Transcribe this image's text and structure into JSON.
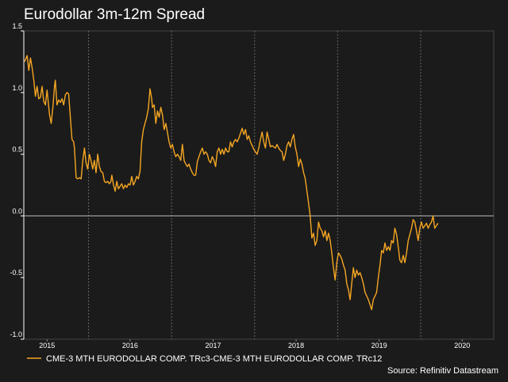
{
  "chart_data": {
    "type": "line",
    "title": "Eurodollar 3m-12m Spread",
    "source": "Source: Refinitiv Datastream",
    "xlabel": "",
    "ylabel": "",
    "ylim": [
      -1.0,
      1.5
    ],
    "xlim": [
      2014.72,
      2020.38
    ],
    "yticks": [
      {
        "value": 1.5,
        "label": "1.5"
      },
      {
        "value": 1.0,
        "label": "1.0"
      },
      {
        "value": 0.5,
        "label": "0.5"
      },
      {
        "value": 0.0,
        "label": "0.0"
      },
      {
        "value": -0.5,
        "label": "-0.5"
      },
      {
        "value": -1.0,
        "label": "-1.0"
      }
    ],
    "xticks": [
      {
        "value": 2015.0,
        "label": "2015"
      },
      {
        "value": 2016.0,
        "label": "2016"
      },
      {
        "value": 2017.0,
        "label": "2017"
      },
      {
        "value": 2018.0,
        "label": "2018"
      },
      {
        "value": 2019.0,
        "label": "2019"
      },
      {
        "value": 2020.0,
        "label": "2020"
      }
    ],
    "grid": "vertical dashed at year boundaries",
    "legend": "bottom-left",
    "colors": {
      "series": "#f5a623",
      "background": "#1b1b1b",
      "axis": "#ffffff",
      "grid": "#666666",
      "zero_line": "#bbbbbb"
    },
    "series": [
      {
        "name": "CME-3 MTH EURODOLLAR COMP. TRc3-CME-3 MTH EURODOLLAR COMP. TRc12",
        "points": [
          [
            2014.73,
            1.25
          ],
          [
            2014.76,
            1.3
          ],
          [
            2014.78,
            1.18
          ],
          [
            2014.8,
            1.28
          ],
          [
            2014.82,
            1.2
          ],
          [
            2014.84,
            1.1
          ],
          [
            2014.86,
            0.97
          ],
          [
            2014.88,
            1.05
          ],
          [
            2014.9,
            0.95
          ],
          [
            2014.92,
            0.96
          ],
          [
            2014.94,
            1.05
          ],
          [
            2014.96,
            0.93
          ],
          [
            2014.98,
            0.9
          ],
          [
            2015.0,
            1.02
          ],
          [
            2015.03,
            0.82
          ],
          [
            2015.05,
            0.75
          ],
          [
            2015.07,
            0.88
          ],
          [
            2015.09,
            1.05
          ],
          [
            2015.1,
            1.1
          ],
          [
            2015.12,
            0.9
          ],
          [
            2015.14,
            0.94
          ],
          [
            2015.16,
            0.92
          ],
          [
            2015.18,
            0.95
          ],
          [
            2015.2,
            0.9
          ],
          [
            2015.22,
            0.98
          ],
          [
            2015.24,
            1.0
          ],
          [
            2015.26,
            0.99
          ],
          [
            2015.28,
            0.8
          ],
          [
            2015.3,
            0.62
          ],
          [
            2015.32,
            0.6
          ],
          [
            2015.33,
            0.55
          ],
          [
            2015.35,
            0.31
          ],
          [
            2015.37,
            0.3
          ],
          [
            2015.39,
            0.31
          ],
          [
            2015.41,
            0.3
          ],
          [
            2015.43,
            0.45
          ],
          [
            2015.45,
            0.55
          ],
          [
            2015.47,
            0.43
          ],
          [
            2015.49,
            0.38
          ],
          [
            2015.51,
            0.5
          ],
          [
            2015.53,
            0.45
          ],
          [
            2015.55,
            0.38
          ],
          [
            2015.57,
            0.45
          ],
          [
            2015.59,
            0.35
          ],
          [
            2015.61,
            0.5
          ],
          [
            2015.63,
            0.4
          ],
          [
            2015.65,
            0.36
          ],
          [
            2015.67,
            0.35
          ],
          [
            2015.69,
            0.28
          ],
          [
            2015.71,
            0.27
          ],
          [
            2015.73,
            0.28
          ],
          [
            2015.75,
            0.26
          ],
          [
            2015.77,
            0.28
          ],
          [
            2015.78,
            0.33
          ],
          [
            2015.8,
            0.25
          ],
          [
            2015.82,
            0.2
          ],
          [
            2015.84,
            0.28
          ],
          [
            2015.86,
            0.22
          ],
          [
            2015.88,
            0.24
          ],
          [
            2015.9,
            0.26
          ],
          [
            2015.92,
            0.22
          ],
          [
            2015.94,
            0.25
          ],
          [
            2015.96,
            0.23
          ],
          [
            2015.98,
            0.26
          ],
          [
            2016.0,
            0.25
          ],
          [
            2016.02,
            0.32
          ],
          [
            2016.04,
            0.25
          ],
          [
            2016.06,
            0.28
          ],
          [
            2016.08,
            0.32
          ],
          [
            2016.1,
            0.3
          ],
          [
            2016.12,
            0.36
          ],
          [
            2016.14,
            0.6
          ],
          [
            2016.16,
            0.7
          ],
          [
            2016.18,
            0.75
          ],
          [
            2016.2,
            0.8
          ],
          [
            2016.22,
            0.87
          ],
          [
            2016.24,
            1.03
          ],
          [
            2016.26,
            0.95
          ],
          [
            2016.27,
            0.88
          ],
          [
            2016.29,
            0.9
          ],
          [
            2016.31,
            0.75
          ],
          [
            2016.33,
            0.85
          ],
          [
            2016.35,
            0.8
          ],
          [
            2016.37,
            0.88
          ],
          [
            2016.39,
            0.82
          ],
          [
            2016.41,
            0.7
          ],
          [
            2016.43,
            0.75
          ],
          [
            2016.45,
            0.68
          ],
          [
            2016.47,
            0.6
          ],
          [
            2016.49,
            0.55
          ],
          [
            2016.51,
            0.58
          ],
          [
            2016.53,
            0.52
          ],
          [
            2016.55,
            0.48
          ],
          [
            2016.57,
            0.5
          ],
          [
            2016.59,
            0.48
          ],
          [
            2016.61,
            0.45
          ],
          [
            2016.63,
            0.58
          ],
          [
            2016.65,
            0.45
          ],
          [
            2016.67,
            0.42
          ],
          [
            2016.69,
            0.4
          ],
          [
            2016.71,
            0.42
          ],
          [
            2016.73,
            0.38
          ],
          [
            2016.75,
            0.35
          ],
          [
            2016.77,
            0.33
          ],
          [
            2016.79,
            0.33
          ],
          [
            2016.81,
            0.44
          ],
          [
            2016.83,
            0.48
          ],
          [
            2016.85,
            0.52
          ],
          [
            2016.87,
            0.55
          ],
          [
            2016.89,
            0.5
          ],
          [
            2016.91,
            0.52
          ],
          [
            2016.93,
            0.5
          ],
          [
            2016.95,
            0.45
          ],
          [
            2016.97,
            0.43
          ],
          [
            2016.99,
            0.48
          ],
          [
            2017.01,
            0.45
          ],
          [
            2017.03,
            0.4
          ],
          [
            2017.05,
            0.52
          ],
          [
            2017.07,
            0.55
          ],
          [
            2017.09,
            0.5
          ],
          [
            2017.11,
            0.54
          ],
          [
            2017.13,
            0.5
          ],
          [
            2017.15,
            0.55
          ],
          [
            2017.17,
            0.52
          ],
          [
            2017.19,
            0.52
          ],
          [
            2017.21,
            0.6
          ],
          [
            2017.23,
            0.56
          ],
          [
            2017.25,
            0.6
          ],
          [
            2017.27,
            0.62
          ],
          [
            2017.29,
            0.6
          ],
          [
            2017.31,
            0.63
          ],
          [
            2017.33,
            0.67
          ],
          [
            2017.35,
            0.71
          ],
          [
            2017.37,
            0.66
          ],
          [
            2017.39,
            0.7
          ],
          [
            2017.41,
            0.62
          ],
          [
            2017.43,
            0.65
          ],
          [
            2017.45,
            0.6
          ],
          [
            2017.47,
            0.57
          ],
          [
            2017.49,
            0.54
          ],
          [
            2017.51,
            0.52
          ],
          [
            2017.53,
            0.5
          ],
          [
            2017.55,
            0.55
          ],
          [
            2017.57,
            0.62
          ],
          [
            2017.59,
            0.68
          ],
          [
            2017.61,
            0.6
          ],
          [
            2017.63,
            0.55
          ],
          [
            2017.65,
            0.68
          ],
          [
            2017.67,
            0.62
          ],
          [
            2017.69,
            0.56
          ],
          [
            2017.71,
            0.57
          ],
          [
            2017.73,
            0.56
          ],
          [
            2017.75,
            0.55
          ],
          [
            2017.77,
            0.58
          ],
          [
            2017.79,
            0.55
          ],
          [
            2017.81,
            0.53
          ],
          [
            2017.83,
            0.52
          ],
          [
            2017.85,
            0.45
          ],
          [
            2017.87,
            0.5
          ],
          [
            2017.89,
            0.57
          ],
          [
            2017.91,
            0.6
          ],
          [
            2017.93,
            0.56
          ],
          [
            2017.95,
            0.62
          ],
          [
            2017.97,
            0.66
          ],
          [
            2017.99,
            0.56
          ],
          [
            2018.01,
            0.5
          ],
          [
            2018.03,
            0.4
          ],
          [
            2018.05,
            0.46
          ],
          [
            2018.07,
            0.42
          ],
          [
            2018.09,
            0.35
          ],
          [
            2018.11,
            0.3
          ],
          [
            2018.13,
            0.2
          ],
          [
            2018.15,
            0.1
          ],
          [
            2018.17,
            0.0
          ],
          [
            2018.19,
            -0.18
          ],
          [
            2018.21,
            -0.14
          ],
          [
            2018.23,
            -0.24
          ],
          [
            2018.25,
            -0.2
          ],
          [
            2018.27,
            -0.05
          ],
          [
            2018.29,
            -0.1
          ],
          [
            2018.31,
            -0.12
          ],
          [
            2018.33,
            -0.17
          ],
          [
            2018.35,
            -0.12
          ],
          [
            2018.37,
            -0.2
          ],
          [
            2018.39,
            -0.14
          ],
          [
            2018.41,
            -0.2
          ],
          [
            2018.43,
            -0.3
          ],
          [
            2018.45,
            -0.42
          ],
          [
            2018.47,
            -0.52
          ],
          [
            2018.49,
            -0.38
          ],
          [
            2018.51,
            -0.3
          ],
          [
            2018.53,
            -0.32
          ],
          [
            2018.55,
            -0.35
          ],
          [
            2018.57,
            -0.4
          ],
          [
            2018.59,
            -0.44
          ],
          [
            2018.61,
            -0.55
          ],
          [
            2018.63,
            -0.6
          ],
          [
            2018.65,
            -0.68
          ],
          [
            2018.67,
            -0.55
          ],
          [
            2018.69,
            -0.42
          ],
          [
            2018.71,
            -0.5
          ],
          [
            2018.73,
            -0.44
          ],
          [
            2018.75,
            -0.48
          ],
          [
            2018.77,
            -0.46
          ],
          [
            2018.79,
            -0.5
          ],
          [
            2018.81,
            -0.55
          ],
          [
            2018.83,
            -0.62
          ],
          [
            2018.85,
            -0.65
          ],
          [
            2018.87,
            -0.68
          ],
          [
            2018.89,
            -0.72
          ],
          [
            2018.91,
            -0.76
          ],
          [
            2018.93,
            -0.68
          ],
          [
            2018.95,
            -0.65
          ],
          [
            2018.97,
            -0.62
          ],
          [
            2018.99,
            -0.5
          ],
          [
            2019.01,
            -0.4
          ],
          [
            2019.03,
            -0.28
          ],
          [
            2019.05,
            -0.3
          ],
          [
            2019.07,
            -0.22
          ],
          [
            2019.09,
            -0.28
          ],
          [
            2019.11,
            -0.25
          ],
          [
            2019.13,
            -0.28
          ],
          [
            2019.15,
            -0.2
          ],
          [
            2019.17,
            -0.22
          ],
          [
            2019.19,
            -0.1
          ],
          [
            2019.21,
            -0.15
          ],
          [
            2019.23,
            -0.25
          ],
          [
            2019.25,
            -0.36
          ],
          [
            2019.27,
            -0.38
          ],
          [
            2019.29,
            -0.32
          ],
          [
            2019.31,
            -0.38
          ],
          [
            2019.33,
            -0.3
          ],
          [
            2019.35,
            -0.2
          ],
          [
            2019.37,
            -0.15
          ],
          [
            2019.39,
            -0.1
          ],
          [
            2019.41,
            -0.03
          ],
          [
            2019.43,
            -0.05
          ],
          [
            2019.45,
            -0.12
          ],
          [
            2019.47,
            -0.2
          ],
          [
            2019.49,
            -0.1
          ],
          [
            2019.51,
            -0.05
          ],
          [
            2019.53,
            -0.1
          ],
          [
            2019.55,
            -0.08
          ],
          [
            2019.57,
            -0.06
          ],
          [
            2019.59,
            -0.1
          ],
          [
            2019.61,
            -0.07
          ],
          [
            2019.63,
            -0.05
          ],
          [
            2019.65,
            0.0
          ],
          [
            2019.67,
            -0.1
          ],
          [
            2019.69,
            -0.08
          ],
          [
            2019.71,
            -0.06
          ]
        ]
      }
    ]
  }
}
